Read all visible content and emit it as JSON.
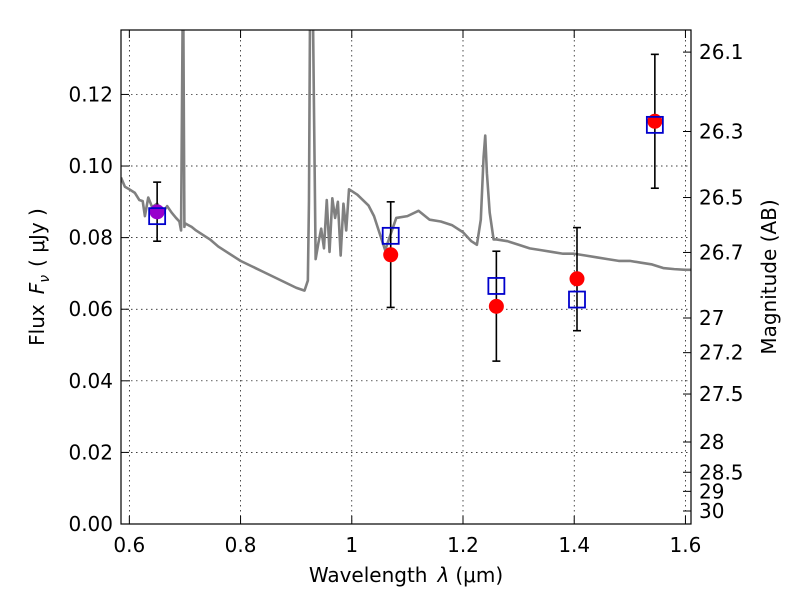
{
  "chart_data": {
    "type": "scatter",
    "title": "",
    "xlabel": "Wavelength",
    "xlabel_symbol": "λ",
    "xlabel_unit": "(μm)",
    "ylabel": "Flux",
    "ylabel_symbol": "F",
    "ylabel_subscript": "ν",
    "ylabel_unit": "( μJy )",
    "y2label": "Magnitude (AB)",
    "xlim": [
      0.585,
      1.61
    ],
    "ylim": [
      0.0,
      0.138
    ],
    "grid": true,
    "x_ticks": [
      {
        "value": 0.6,
        "label": "0.6"
      },
      {
        "value": 0.8,
        "label": "0.8"
      },
      {
        "value": 1.0,
        "label": "1"
      },
      {
        "value": 1.2,
        "label": "1.2"
      },
      {
        "value": 1.4,
        "label": "1.4"
      },
      {
        "value": 1.6,
        "label": "1.6"
      }
    ],
    "y_ticks": [
      {
        "value": 0.0,
        "label": "0.00"
      },
      {
        "value": 0.02,
        "label": "0.02"
      },
      {
        "value": 0.04,
        "label": "0.04"
      },
      {
        "value": 0.06,
        "label": "0.06"
      },
      {
        "value": 0.08,
        "label": "0.08"
      },
      {
        "value": 0.1,
        "label": "0.10"
      },
      {
        "value": 0.12,
        "label": "0.12"
      }
    ],
    "y2_ticks": [
      {
        "value": 26.1,
        "label": "26.1"
      },
      {
        "value": 26.3,
        "label": "26.3"
      },
      {
        "value": 26.5,
        "label": "26.5"
      },
      {
        "value": 26.7,
        "label": "26.7"
      },
      {
        "value": 27.0,
        "label": "27"
      },
      {
        "value": 27.2,
        "label": "27.2"
      },
      {
        "value": 27.5,
        "label": "27.5"
      },
      {
        "value": 28.0,
        "label": "28"
      },
      {
        "value": 28.5,
        "label": "28.5"
      },
      {
        "value": 29.0,
        "label": "29"
      },
      {
        "value": 30.0,
        "label": "30"
      }
    ],
    "spectrum": {
      "color": "#808080",
      "x": [
        0.585,
        0.592,
        0.6,
        0.61,
        0.618,
        0.624,
        0.628,
        0.634,
        0.641,
        0.65,
        0.66,
        0.668,
        0.676,
        0.684,
        0.69,
        0.693,
        0.696,
        0.697,
        0.699,
        0.7,
        0.706,
        0.712,
        0.72,
        0.73,
        0.745,
        0.76,
        0.775,
        0.79,
        0.8,
        0.82,
        0.84,
        0.86,
        0.88,
        0.9,
        0.915,
        0.921,
        0.923,
        0.925,
        0.93,
        0.935,
        0.94,
        0.945,
        0.95,
        0.955,
        0.96,
        0.965,
        0.97,
        0.975,
        0.98,
        0.985,
        0.99,
        0.995,
        1.0,
        1.01,
        1.02,
        1.03,
        1.04,
        1.06,
        1.08,
        1.1,
        1.12,
        1.14,
        1.16,
        1.18,
        1.2,
        1.215,
        1.225,
        1.232,
        1.237,
        1.24,
        1.243,
        1.248,
        1.255,
        1.26,
        1.28,
        1.3,
        1.32,
        1.34,
        1.36,
        1.38,
        1.4,
        1.42,
        1.44,
        1.46,
        1.48,
        1.5,
        1.52,
        1.54,
        1.56,
        1.58,
        1.6,
        1.61
      ],
      "y": [
        0.0968,
        0.0942,
        0.0935,
        0.0925,
        0.0905,
        0.0902,
        0.086,
        0.0912,
        0.0885,
        0.0895,
        0.087,
        0.0888,
        0.087,
        0.0855,
        0.0845,
        0.082,
        0.145,
        0.145,
        0.083,
        0.084,
        0.0835,
        0.083,
        0.082,
        0.081,
        0.0795,
        0.0775,
        0.076,
        0.0745,
        0.0735,
        0.072,
        0.0705,
        0.069,
        0.0675,
        0.066,
        0.0652,
        0.068,
        0.09,
        0.145,
        0.145,
        0.074,
        0.0785,
        0.0825,
        0.077,
        0.0905,
        0.076,
        0.091,
        0.0855,
        0.09,
        0.075,
        0.0895,
        0.082,
        0.0935,
        0.093,
        0.092,
        0.0905,
        0.089,
        0.086,
        0.0765,
        0.0855,
        0.086,
        0.0875,
        0.085,
        0.0845,
        0.0835,
        0.0815,
        0.079,
        0.078,
        0.085,
        0.1025,
        0.1085,
        0.098,
        0.087,
        0.0795,
        0.0795,
        0.079,
        0.078,
        0.077,
        0.0765,
        0.076,
        0.0755,
        0.0755,
        0.075,
        0.0745,
        0.074,
        0.0735,
        0.0735,
        0.073,
        0.0725,
        0.0715,
        0.0712,
        0.071,
        0.071
      ]
    },
    "observed": {
      "color": "#ff0000",
      "points": [
        {
          "x": 0.65,
          "y": 0.0872,
          "err_low": 0.079,
          "err_high": 0.0955
        },
        {
          "x": 1.07,
          "y": 0.0752,
          "err_low": 0.0605,
          "err_high": 0.09
        },
        {
          "x": 1.26,
          "y": 0.0608,
          "err_low": 0.0455,
          "err_high": 0.0762
        },
        {
          "x": 1.405,
          "y": 0.0685,
          "err_low": 0.054,
          "err_high": 0.0828
        },
        {
          "x": 1.545,
          "y": 0.1125,
          "err_low": 0.0938,
          "err_high": 0.1312
        }
      ]
    },
    "model": {
      "color": "#0000cc",
      "points": [
        {
          "x": 0.65,
          "y": 0.086
        },
        {
          "x": 1.07,
          "y": 0.0805
        },
        {
          "x": 1.26,
          "y": 0.0665
        },
        {
          "x": 1.405,
          "y": 0.0627
        },
        {
          "x": 1.545,
          "y": 0.1115
        }
      ]
    },
    "overlap_color": "#9900cc"
  }
}
